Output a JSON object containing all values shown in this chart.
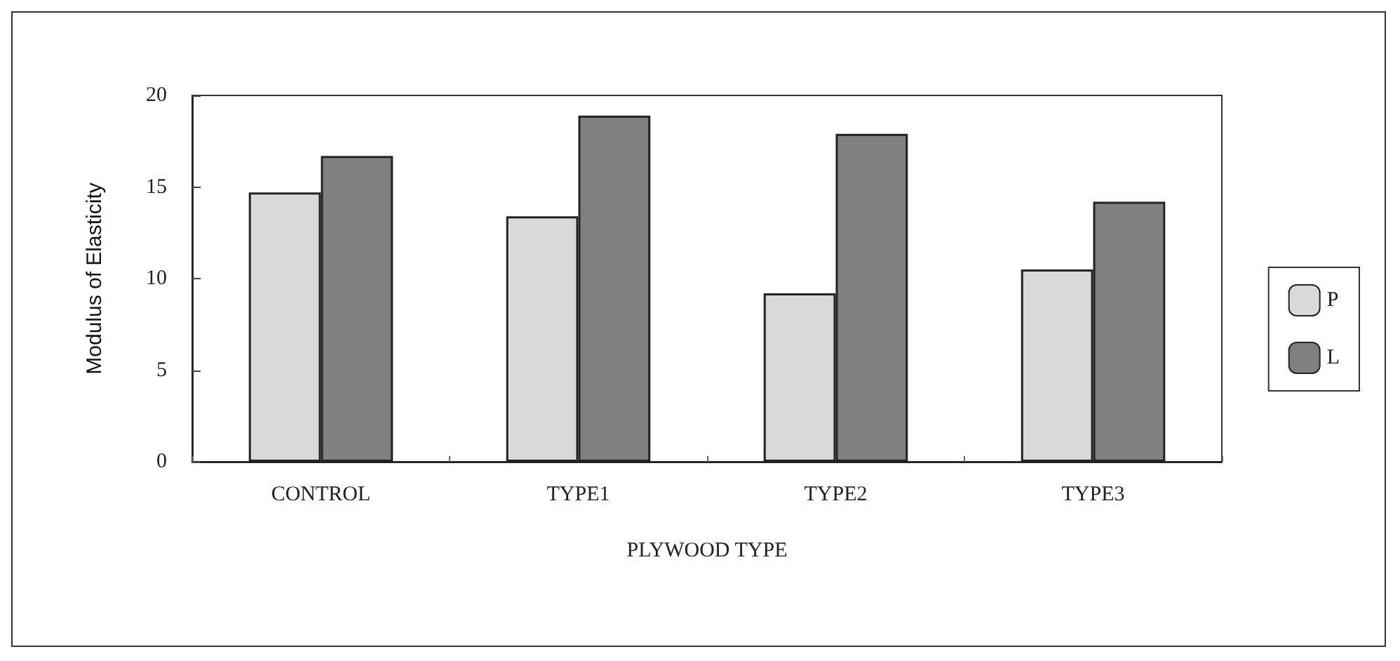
{
  "chart_data": {
    "type": "bar",
    "xlabel": "PLYWOOD TYPE",
    "ylabel": "Modulus of Elasticity",
    "categories": [
      "CONTROL",
      "TYPE1",
      "TYPE2",
      "TYPE3"
    ],
    "series": [
      {
        "name": "P",
        "color": "#d9d9d9",
        "values": [
          14.7,
          13.4,
          9.2,
          10.5
        ]
      },
      {
        "name": "L",
        "color": "#808080",
        "values": [
          16.7,
          18.9,
          17.9,
          14.2
        ]
      }
    ],
    "ylim": [
      0,
      20
    ],
    "yticks": [
      0,
      5,
      10,
      15,
      20
    ],
    "grid": false,
    "legend": "right"
  }
}
